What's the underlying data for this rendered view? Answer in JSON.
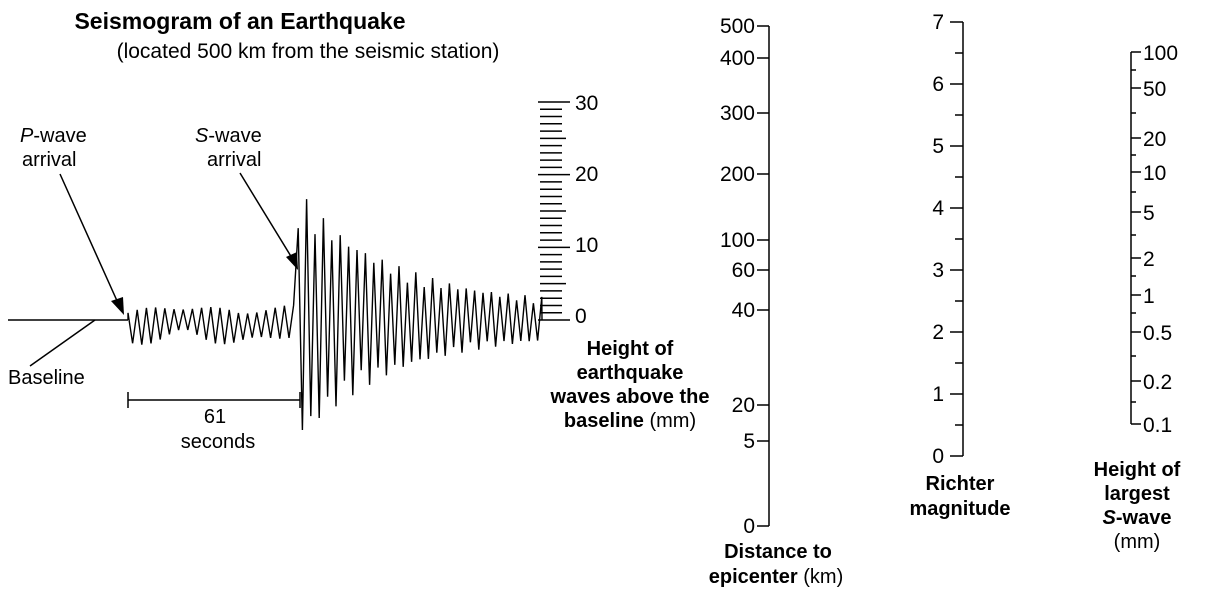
{
  "seismogram": {
    "title": "Seismogram of an Earthquake",
    "subtitle": "(located 500 km from the seismic station)",
    "p_wave_prefix": "P",
    "p_wave_suffix": "-wave",
    "p_wave_line2": "arrival",
    "s_wave_prefix": "S",
    "s_wave_suffix": "-wave",
    "s_wave_line2": "arrival",
    "baseline_label": "Baseline",
    "interval_value": "61",
    "interval_unit": "seconds",
    "p_to_s_interval_seconds": 61,
    "peak_s_wave_height_mm": 20,
    "height_scale": {
      "min": 0,
      "max": 30,
      "minor_step": 1,
      "labels": [
        "0",
        "10",
        "20",
        "30"
      ],
      "title_bold_1": "Height of",
      "title_bold_2": "earthquake",
      "title_bold_3": "waves above the",
      "title_bold_4": "baseline",
      "title_unit": " (mm)"
    }
  },
  "nomogram": {
    "distance_scale": {
      "labels": [
        "500",
        "400",
        "300",
        "200",
        "100",
        "60",
        "40",
        "20",
        "5",
        "0"
      ],
      "title_bold_1": "Distance to",
      "title_bold_2": "epicenter",
      "title_unit": " (km)"
    },
    "magnitude_scale": {
      "labels": [
        "7",
        "6",
        "5",
        "4",
        "3",
        "2",
        "1",
        "0"
      ],
      "title_bold_1": "Richter",
      "title_bold_2": "magnitude"
    },
    "amplitude_scale": {
      "labels": [
        "100",
        "50",
        "20",
        "10",
        "5",
        "2",
        "1",
        "0.5",
        "0.2",
        "0.1"
      ],
      "title_bold_1": "Height of",
      "title_bold_2": "largest",
      "title_bold_3_prefix": "S",
      "title_bold_3_suffix": "-wave",
      "title_unit": "(mm)"
    }
  }
}
